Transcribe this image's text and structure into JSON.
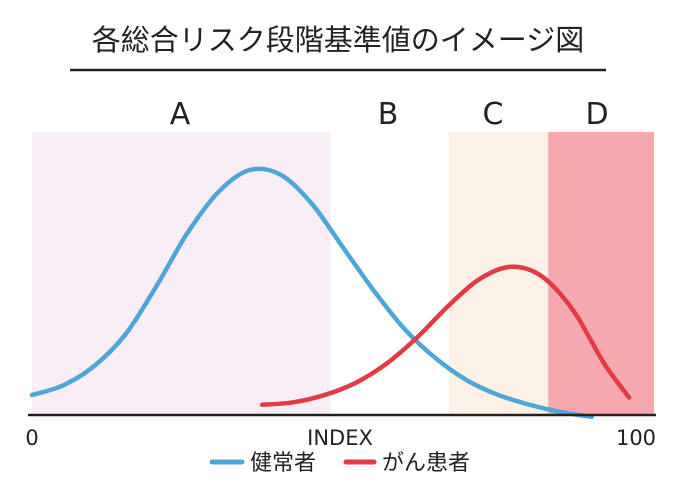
{
  "chart_data": {
    "type": "line",
    "title": "各総合リスク段階基準値のイメージ図",
    "xlabel": "INDEX",
    "ylabel": "",
    "xlim": [
      0,
      100
    ],
    "x_ticks": [
      "0",
      "100"
    ],
    "y_axis_shown": false,
    "grid": false,
    "legend_position": "bottom",
    "zones": [
      {
        "label": "A",
        "x_start": 0,
        "x_end": 48,
        "color": "#f8eef6"
      },
      {
        "label": "B",
        "x_start": 48,
        "x_end": 67,
        "color": "#ffffff"
      },
      {
        "label": "C",
        "x_start": 67,
        "x_end": 83,
        "color": "#fcf1e6"
      },
      {
        "label": "D",
        "x_start": 83,
        "x_end": 100,
        "color": "#f5a8ae"
      }
    ],
    "series": [
      {
        "name": "健常者",
        "color": "#4ea6d8",
        "x": [
          0,
          5,
          10,
          15,
          20,
          25,
          30,
          35,
          40,
          45,
          50,
          55,
          60,
          65,
          70,
          75,
          80,
          85,
          90
        ],
        "y": [
          0.07,
          0.11,
          0.19,
          0.32,
          0.52,
          0.74,
          0.91,
          1.0,
          0.98,
          0.86,
          0.68,
          0.5,
          0.34,
          0.22,
          0.13,
          0.07,
          0.03,
          0.0,
          -0.02
        ]
      },
      {
        "name": "がん患者",
        "color": "#e23b45",
        "x": [
          37,
          42,
          47,
          52,
          57,
          62,
          67,
          72,
          77,
          82,
          87,
          92,
          96
        ],
        "y": [
          0.03,
          0.04,
          0.07,
          0.12,
          0.2,
          0.31,
          0.44,
          0.55,
          0.6,
          0.56,
          0.42,
          0.2,
          0.06
        ]
      }
    ]
  }
}
